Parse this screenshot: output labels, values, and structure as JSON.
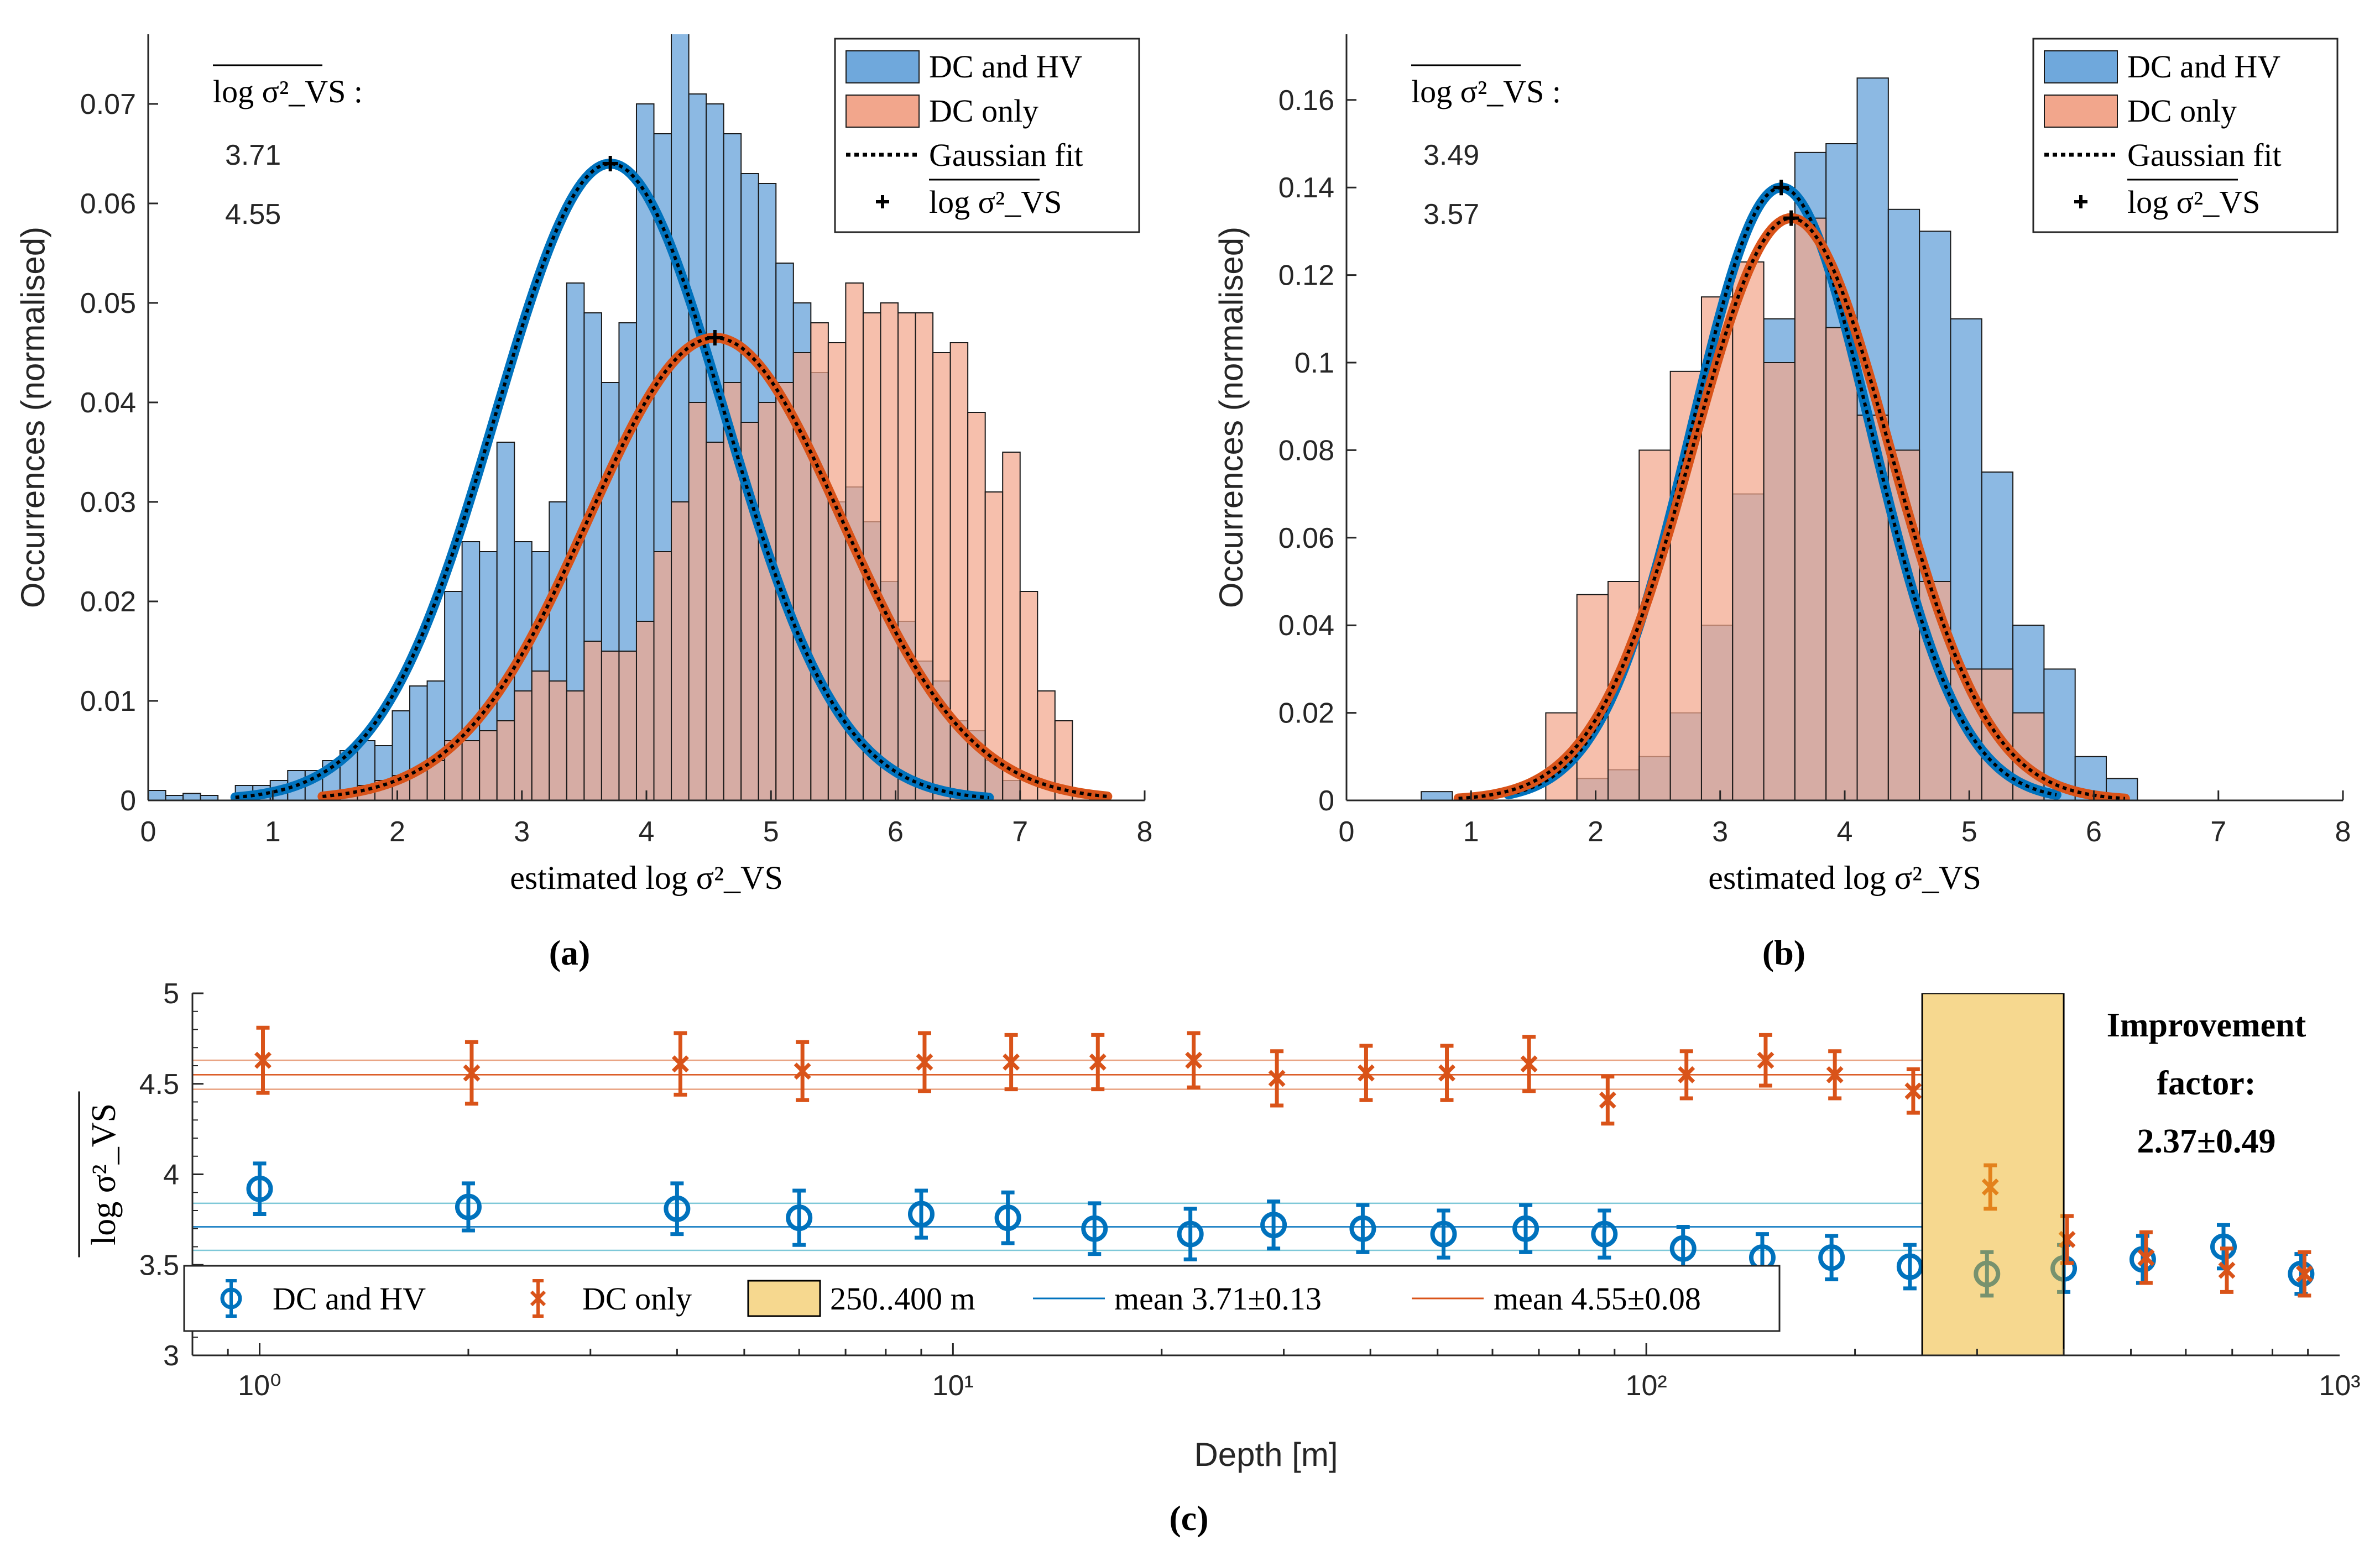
{
  "colors": {
    "blue": "#0072BD",
    "orange": "#D95319",
    "blue_fill": "#6FA8DC",
    "orange_fill": "#F2A68C",
    "band": "#EDB120"
  },
  "chart_data": [
    {
      "panel": "(a)",
      "type": "bar",
      "xlabel": "estimated log σ²_VS",
      "ylabel": "Occurrences (normalised)",
      "xlim": [
        0,
        8
      ],
      "ylim": [
        0,
        0.077
      ],
      "xticks": [
        "0",
        "1",
        "2",
        "3",
        "4",
        "5",
        "6",
        "7",
        "8"
      ],
      "yticks": [
        "0",
        "0.01",
        "0.02",
        "0.03",
        "0.04",
        "0.05",
        "0.06",
        "0.07"
      ],
      "stat_header": "log σ²_VS :",
      "stat_values": [
        "3.71",
        "4.55"
      ],
      "legend": [
        "DC and HV",
        "DC only",
        "Gaussian fit",
        "log σ²_VS"
      ],
      "bin_width": 0.14,
      "series": [
        {
          "name": "DC and HV",
          "bin_start": 0.0,
          "values": [
            0.001,
            0.0005,
            0.0007,
            0.0005,
            0.0,
            0.0015,
            0.0015,
            0.002,
            0.003,
            0.003,
            0.004,
            0.005,
            0.006,
            0.0055,
            0.009,
            0.0115,
            0.012,
            0.021,
            0.026,
            0.025,
            0.036,
            0.026,
            0.025,
            0.03,
            0.052,
            0.049,
            0.042,
            0.048,
            0.07,
            0.067,
            0.08,
            0.071,
            0.07,
            0.067,
            0.063,
            0.062,
            0.054,
            0.05,
            0.043,
            0.03,
            0.0315,
            0.028,
            0.022,
            0.018,
            0.014,
            0.012,
            0.008,
            0.007,
            0.004,
            0.002
          ]
        },
        {
          "name": "DC only",
          "bin_start": 1.4,
          "values": [
            0.0005,
            0.001,
            0.0015,
            0.002,
            0.0025,
            0.003,
            0.004,
            0.006,
            0.006,
            0.007,
            0.008,
            0.011,
            0.013,
            0.012,
            0.011,
            0.016,
            0.015,
            0.015,
            0.018,
            0.025,
            0.03,
            0.04,
            0.036,
            0.042,
            0.038,
            0.04,
            0.042,
            0.045,
            0.048,
            0.046,
            0.052,
            0.049,
            0.05,
            0.049,
            0.049,
            0.045,
            0.046,
            0.039,
            0.031,
            0.035,
            0.021,
            0.011,
            0.008,
            0.001
          ]
        }
      ],
      "gaussian_fits": [
        {
          "name": "DC and HV",
          "mean": 3.71,
          "sigma": 0.92,
          "peak": 0.064,
          "x_range": [
            0.7,
            6.75
          ]
        },
        {
          "name": "DC only",
          "mean": 4.55,
          "sigma": 1.02,
          "peak": 0.0465,
          "x_range": [
            1.4,
            7.7
          ]
        }
      ]
    },
    {
      "panel": "(b)",
      "type": "bar",
      "xlabel": "estimated log σ²_VS",
      "ylabel": "Occurrences (normalised)",
      "xlim": [
        0,
        8
      ],
      "ylim": [
        0,
        0.175
      ],
      "xticks": [
        "0",
        "1",
        "2",
        "3",
        "4",
        "5",
        "6",
        "7",
        "8"
      ],
      "yticks": [
        "0",
        "0.02",
        "0.04",
        "0.06",
        "0.08",
        "0.1",
        "0.12",
        "0.14",
        "0.16"
      ],
      "stat_header": "log σ²_VS :",
      "stat_values": [
        "3.49",
        "3.57"
      ],
      "legend": [
        "DC and HV",
        "DC only",
        "Gaussian fit",
        "log σ²_VS"
      ],
      "bin_width": 0.25,
      "series": [
        {
          "name": "DC and HV",
          "bin_start": 0.6,
          "values": [
            0.002,
            0.0,
            0.0,
            0.0,
            0.0,
            0.005,
            0.007,
            0.01,
            0.02,
            0.04,
            0.07,
            0.11,
            0.148,
            0.15,
            0.165,
            0.135,
            0.13,
            0.11,
            0.075,
            0.04,
            0.03,
            0.01,
            0.005,
            0.0
          ]
        },
        {
          "name": "DC only",
          "bin_start": 1.6,
          "values": [
            0.02,
            0.047,
            0.05,
            0.08,
            0.098,
            0.115,
            0.123,
            0.1,
            0.133,
            0.108,
            0.088,
            0.08,
            0.05,
            0.03,
            0.03,
            0.02,
            0.0
          ]
        }
      ],
      "gaussian_fits": [
        {
          "name": "DC and HV",
          "mean": 3.49,
          "sigma": 0.72,
          "peak": 0.14,
          "x_range": [
            1.3,
            5.7
          ]
        },
        {
          "name": "DC only",
          "mean": 3.57,
          "sigma": 0.79,
          "peak": 0.133,
          "x_range": [
            0.9,
            6.25
          ]
        }
      ]
    },
    {
      "panel": "(c)",
      "type": "scatter",
      "xscale": "log",
      "xlabel": "Depth [m]",
      "ylabel": "log σ²_VS",
      "xlim": [
        0.8,
        1000
      ],
      "ylim": [
        3.0,
        5.0
      ],
      "xticks": [
        "10⁰",
        "10¹",
        "10²",
        "10³"
      ],
      "yticks": [
        "3",
        "3.5",
        "4",
        "4.5",
        "5"
      ],
      "band": {
        "label": "250..400 m",
        "x_range": [
          250,
          400
        ]
      },
      "annotation": [
        "Improvement",
        "factor:",
        "2.37±0.49"
      ],
      "means": [
        {
          "name": "mean 3.71±0.13",
          "value": 3.71,
          "err": 0.13
        },
        {
          "name": "mean 4.55±0.08",
          "value": 4.55,
          "err": 0.08
        }
      ],
      "legend": [
        "DC and HV",
        "DC only",
        "250..400 m",
        "mean 3.71±0.13",
        "mean 4.55±0.08"
      ],
      "series": [
        {
          "name": "DC and HV",
          "marker": "circle",
          "x": [
            1,
            2,
            4,
            6,
            9,
            12,
            16,
            22,
            29,
            39,
            51,
            67,
            87,
            113,
            147,
            185,
            240,
            310,
            400,
            520,
            680,
            880
          ],
          "y": [
            3.92,
            3.82,
            3.81,
            3.76,
            3.78,
            3.76,
            3.7,
            3.67,
            3.72,
            3.7,
            3.67,
            3.7,
            3.67,
            3.59,
            3.54,
            3.54,
            3.49,
            3.45,
            3.48,
            3.53,
            3.6,
            3.45
          ],
          "err": [
            0.14,
            0.13,
            0.14,
            0.15,
            0.13,
            0.14,
            0.14,
            0.14,
            0.13,
            0.13,
            0.13,
            0.13,
            0.13,
            0.12,
            0.13,
            0.12,
            0.12,
            0.12,
            0.13,
            0.13,
            0.12,
            0.11
          ]
        },
        {
          "name": "DC only",
          "marker": "x",
          "x": [
            1,
            2,
            4,
            6,
            9,
            12,
            16,
            22,
            29,
            39,
            51,
            67,
            87,
            113,
            147,
            185,
            240,
            310,
            400,
            520,
            680,
            880
          ],
          "y": [
            4.63,
            4.56,
            4.61,
            4.57,
            4.62,
            4.62,
            4.62,
            4.63,
            4.53,
            4.56,
            4.56,
            4.61,
            4.41,
            4.55,
            4.63,
            4.55,
            4.46,
            3.93,
            3.64,
            3.54,
            3.47,
            3.45
          ],
          "err": [
            0.18,
            0.17,
            0.17,
            0.16,
            0.16,
            0.15,
            0.15,
            0.15,
            0.15,
            0.15,
            0.15,
            0.15,
            0.13,
            0.13,
            0.14,
            0.13,
            0.12,
            0.12,
            0.13,
            0.14,
            0.12,
            0.12
          ]
        }
      ]
    }
  ]
}
